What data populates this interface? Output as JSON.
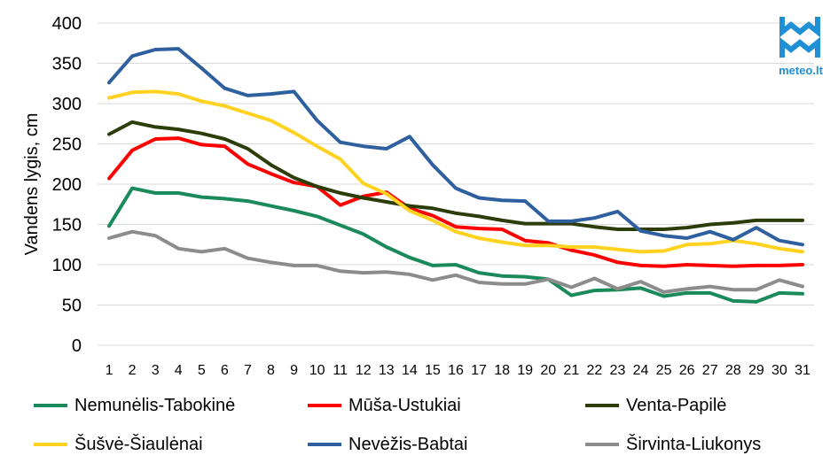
{
  "logo": {
    "text": "meteo.lt",
    "color": "#1f8fd6"
  },
  "chart_data": {
    "type": "line",
    "ylabel": "Vandens lygis, cm",
    "xlabel": "",
    "ylim": [
      0,
      400
    ],
    "yticks": [
      0,
      50,
      100,
      150,
      200,
      250,
      300,
      350,
      400
    ],
    "x": [
      1,
      2,
      3,
      4,
      5,
      6,
      7,
      8,
      9,
      10,
      11,
      12,
      13,
      14,
      15,
      16,
      17,
      18,
      19,
      20,
      21,
      22,
      23,
      24,
      25,
      26,
      27,
      28,
      29,
      30,
      31
    ],
    "grid": "horizontal",
    "legend_position": "bottom",
    "series": [
      {
        "name": "Nemunėlis-Tabokinė",
        "color": "#1a8a5a",
        "values": [
          148,
          195,
          189,
          189,
          184,
          182,
          179,
          173,
          167,
          160,
          149,
          138,
          122,
          109,
          99,
          100,
          90,
          86,
          85,
          82,
          62,
          68,
          69,
          71,
          61,
          65,
          65,
          55,
          54,
          65,
          64
        ]
      },
      {
        "name": "Mūša-Ustukiai",
        "color": "#ff0000",
        "values": [
          207,
          242,
          256,
          257,
          249,
          247,
          225,
          213,
          202,
          197,
          174,
          185,
          190,
          170,
          161,
          147,
          145,
          144,
          130,
          127,
          118,
          112,
          103,
          99,
          98,
          100,
          99,
          98,
          99,
          99,
          100
        ]
      },
      {
        "name": "Venta-Papilė",
        "color": "#2d3d0a",
        "values": [
          262,
          277,
          271,
          268,
          263,
          256,
          244,
          224,
          208,
          197,
          189,
          183,
          178,
          173,
          170,
          164,
          160,
          155,
          151,
          151,
          151,
          147,
          144,
          144,
          144,
          146,
          150,
          152,
          155,
          155,
          155
        ]
      },
      {
        "name": "Šušvė-Šiaulėnai",
        "color": "#ffd21f",
        "values": [
          307,
          314,
          315,
          312,
          303,
          297,
          288,
          279,
          264,
          247,
          231,
          201,
          188,
          167,
          155,
          141,
          133,
          128,
          124,
          124,
          122,
          122,
          119,
          116,
          117,
          125,
          126,
          130,
          126,
          120,
          116
        ]
      },
      {
        "name": "Nevėžis-Babtai",
        "color": "#2e5f9e",
        "values": [
          326,
          359,
          367,
          368,
          344,
          319,
          310,
          312,
          315,
          279,
          252,
          247,
          244,
          259,
          224,
          195,
          183,
          180,
          179,
          154,
          154,
          158,
          166,
          142,
          136,
          133,
          141,
          131,
          146,
          130,
          125
        ]
      },
      {
        "name": "Širvinta-Liukonys",
        "color": "#8c8c8c",
        "values": [
          133,
          141,
          136,
          120,
          116,
          120,
          108,
          103,
          99,
          99,
          92,
          90,
          91,
          88,
          81,
          87,
          78,
          76,
          76,
          82,
          72,
          83,
          70,
          79,
          66,
          70,
          73,
          69,
          69,
          81,
          73
        ]
      }
    ]
  }
}
